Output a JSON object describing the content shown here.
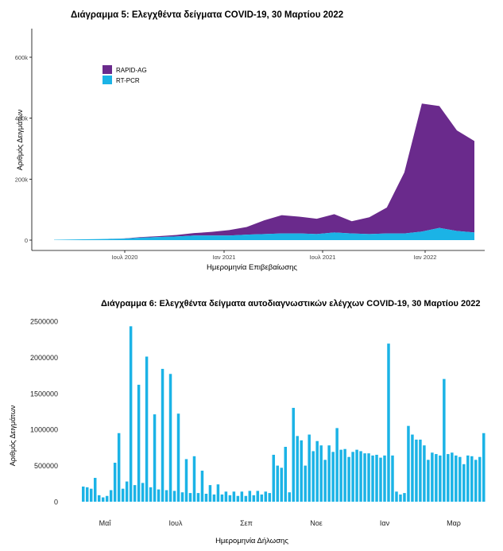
{
  "chart_data": [
    {
      "type": "area",
      "title": "Διάγραμμα 5: Ελεγχθέντα δείγματα COVID-19, 30 Μαρτίου 2022",
      "xlabel": "Ημερομηνία Επιβεβαίωσης",
      "ylabel": "Αριθμός Δειγμάτων",
      "x_ticks": [
        "Ιουλ 2020",
        "Ιαν 2021",
        "Ιουλ 2021",
        "Ιαν 2022"
      ],
      "y_ticks": [
        "0",
        "200k",
        "400k",
        "600k"
      ],
      "ylim": [
        0,
        700000
      ],
      "x": [
        "2020-03",
        "2020-04",
        "2020-05",
        "2020-06",
        "2020-07",
        "2020-08",
        "2020-09",
        "2020-10",
        "2020-11",
        "2020-12",
        "2021-01",
        "2021-02",
        "2021-03",
        "2021-04",
        "2021-05",
        "2021-06",
        "2021-07",
        "2021-08",
        "2021-09",
        "2021-10",
        "2021-11",
        "2021-12",
        "2022-01",
        "2022-02",
        "2022-03"
      ],
      "stacked": true,
      "legend_position": "top-left",
      "grid": false,
      "series": [
        {
          "name": "RT-PCR",
          "color": "#1BB3E6",
          "values": [
            1000,
            2000,
            3000,
            4000,
            5000,
            8000,
            10000,
            12000,
            15000,
            15000,
            15000,
            18000,
            20000,
            22000,
            22000,
            20000,
            25000,
            22000,
            20000,
            22000,
            22000,
            28000,
            40000,
            30000,
            25000
          ]
        },
        {
          "name": "RAPID-AG",
          "color": "#6A2A8C",
          "values": [
            0,
            0,
            0,
            0,
            500,
            2000,
            3000,
            5000,
            8000,
            12000,
            18000,
            25000,
            45000,
            60000,
            55000,
            50000,
            60000,
            40000,
            55000,
            85000,
            200000,
            420000,
            400000,
            330000,
            300000
          ]
        }
      ]
    },
    {
      "type": "bar",
      "title": "Διάγραμμα 6: Ελεγχθέντα δείγματα αυτοδιαγνωστικών ελέγχων COVID-19, 30 Μαρτίου 2022",
      "xlabel": "Ημερομηνία Δήλωσης",
      "ylabel": "Αριθμός Δειγμάτων",
      "x_ticks": [
        "Μαΐ",
        "Ιουλ",
        "Σεπ",
        "Νοε",
        "Ιαν",
        "Μαρ"
      ],
      "y_ticks": [
        "0",
        "500000",
        "1000000",
        "1500000",
        "2000000",
        "2500000"
      ],
      "ylim": [
        0,
        2500000
      ],
      "color": "#1BB3E6",
      "grid": false,
      "series": [
        {
          "name": "",
          "values": [
            210000,
            200000,
            180000,
            330000,
            90000,
            60000,
            80000,
            160000,
            540000,
            950000,
            180000,
            280000,
            2430000,
            230000,
            1620000,
            260000,
            2010000,
            200000,
            1210000,
            170000,
            1840000,
            160000,
            1770000,
            150000,
            1220000,
            130000,
            590000,
            120000,
            630000,
            120000,
            430000,
            110000,
            230000,
            100000,
            240000,
            100000,
            140000,
            90000,
            140000,
            80000,
            140000,
            80000,
            150000,
            90000,
            150000,
            100000,
            140000,
            120000,
            650000,
            500000,
            470000,
            760000,
            130000,
            1300000,
            910000,
            850000,
            500000,
            930000,
            700000,
            840000,
            780000,
            580000,
            780000,
            690000,
            1020000,
            720000,
            730000,
            620000,
            690000,
            720000,
            700000,
            670000,
            670000,
            640000,
            650000,
            610000,
            640000,
            2190000,
            640000,
            140000,
            100000,
            120000,
            1050000,
            930000,
            860000,
            860000,
            780000,
            580000,
            680000,
            660000,
            640000,
            1700000,
            660000,
            680000,
            640000,
            620000,
            520000,
            640000,
            630000,
            580000,
            620000,
            950000
          ]
        }
      ]
    }
  ]
}
